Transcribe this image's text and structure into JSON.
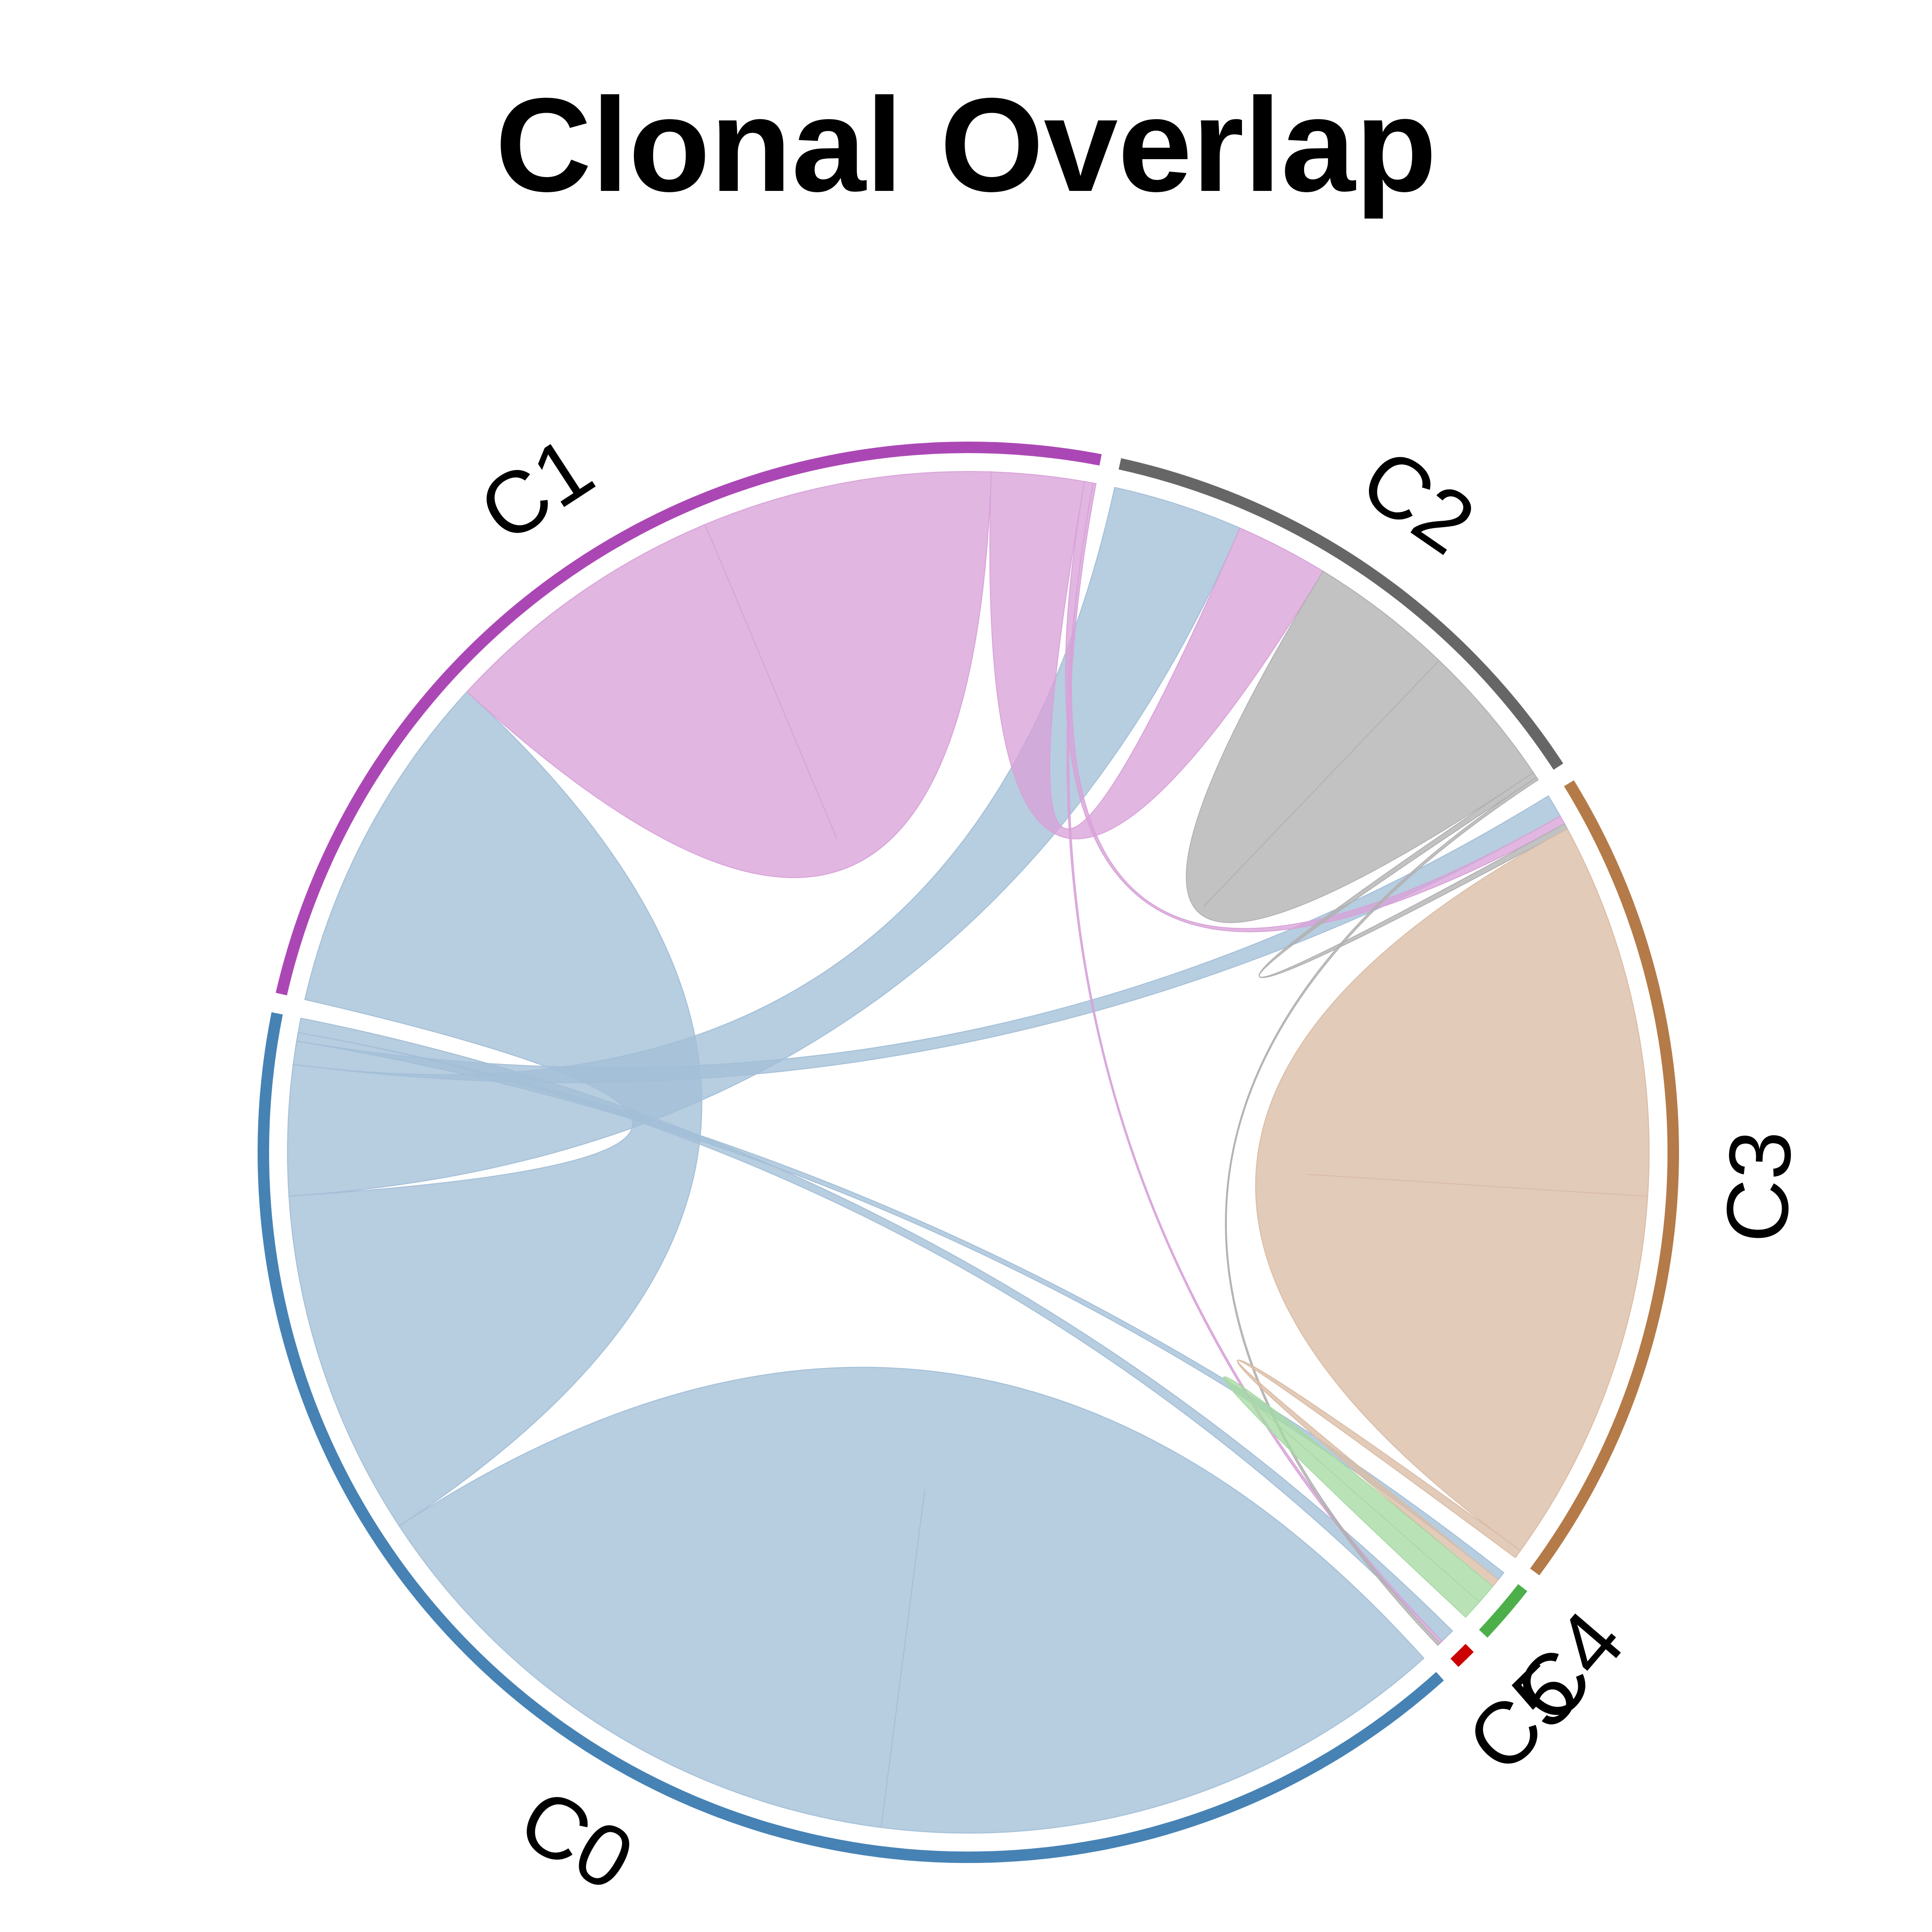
{
  "chart_data": {
    "type": "chord",
    "title": "Clonal Overlap",
    "sectors": [
      {
        "name": "C0",
        "color": "#4682B4",
        "ribbon_color": "#A3BFD7"
      },
      {
        "name": "C1",
        "color": "#AB47B5",
        "ribbon_color": "#D8A2D8"
      },
      {
        "name": "C2",
        "color": "#666666",
        "ribbon_color": "#B1B1B1"
      },
      {
        "name": "C3",
        "color": "#B47A48",
        "ribbon_color": "#DABCA5"
      },
      {
        "name": "C4",
        "color": "#4CAF4A",
        "ribbon_color": "#A6DAA3"
      },
      {
        "name": "C5",
        "color": "#CC0000",
        "ribbon_color": "#E8A0A0"
      }
    ],
    "links": [
      {
        "from": "C0",
        "to": "C0",
        "value": 20
      },
      {
        "from": "C0",
        "to": "C1",
        "value": 12
      },
      {
        "from": "C0",
        "to": "C2",
        "value": 4.5
      },
      {
        "from": "C0",
        "to": "C3",
        "value": 0.8
      },
      {
        "from": "C0",
        "to": "C4",
        "value": 0.3
      },
      {
        "from": "C0",
        "to": "C5",
        "value": 0.5
      },
      {
        "from": "C1",
        "to": "C1",
        "value": 10
      },
      {
        "from": "C1",
        "to": "C2",
        "value": 3.2
      },
      {
        "from": "C1",
        "to": "C3",
        "value": 0.3
      },
      {
        "from": "C1",
        "to": "C5",
        "value": 0.1
      },
      {
        "from": "C2",
        "to": "C2",
        "value": 5
      },
      {
        "from": "C2",
        "to": "C3",
        "value": 0.2
      },
      {
        "from": "C2",
        "to": "C5",
        "value": 0.1
      },
      {
        "from": "C3",
        "to": "C3",
        "value": 13
      },
      {
        "from": "C3",
        "to": "C4",
        "value": 0.3
      },
      {
        "from": "C4",
        "to": "C4",
        "value": 0.7
      }
    ]
  }
}
